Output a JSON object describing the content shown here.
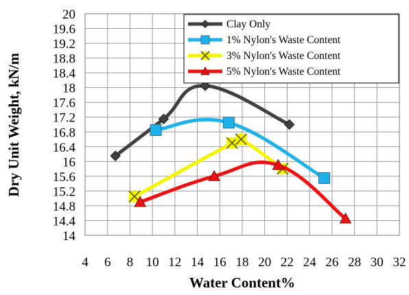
{
  "chart_data": {
    "type": "scatter",
    "title": "",
    "xlabel": "Water Content%",
    "ylabel": "Dry Unit Weight, kN/m",
    "xlim": [
      4,
      32
    ],
    "ylim": [
      14,
      20
    ],
    "x_ticks": [
      "4",
      "6",
      "8",
      "10",
      "12",
      "14",
      "16",
      "18",
      "20",
      "22",
      "24",
      "26",
      "28",
      "30",
      "32"
    ],
    "y_ticks": [
      "14",
      "14.4",
      "14.8",
      "15.2",
      "15.6",
      "16",
      "16.4",
      "16.8",
      "17.2",
      "17.6",
      "18",
      "18.4",
      "18.8",
      "19.2",
      "19.6",
      "20"
    ],
    "grid": true,
    "smooth_lines": true,
    "legend_position": "top-right",
    "series": [
      {
        "name": "Clay Only",
        "color": "#404040",
        "marker": "diamond",
        "x": [
          6.7,
          11.0,
          14.7,
          22.2
        ],
        "y": [
          16.15,
          17.15,
          18.05,
          17.0
        ]
      },
      {
        "name": "1% Nylon's Waste Content",
        "color": "#1fb1ea",
        "marker": "square",
        "x": [
          10.3,
          16.8,
          25.3
        ],
        "y": [
          16.85,
          17.05,
          15.55
        ]
      },
      {
        "name": "3% Nylon's Waste Content",
        "color": "#f5f500",
        "marker": "x",
        "x": [
          8.4,
          17.1,
          17.9,
          21.6
        ],
        "y": [
          15.05,
          16.5,
          16.6,
          15.8
        ]
      },
      {
        "name": "5% Nylon's Waste Content",
        "color": "#ee1111",
        "marker": "triangle",
        "x": [
          8.9,
          15.5,
          21.2,
          27.2
        ],
        "y": [
          14.9,
          15.6,
          15.9,
          14.45
        ]
      }
    ]
  }
}
